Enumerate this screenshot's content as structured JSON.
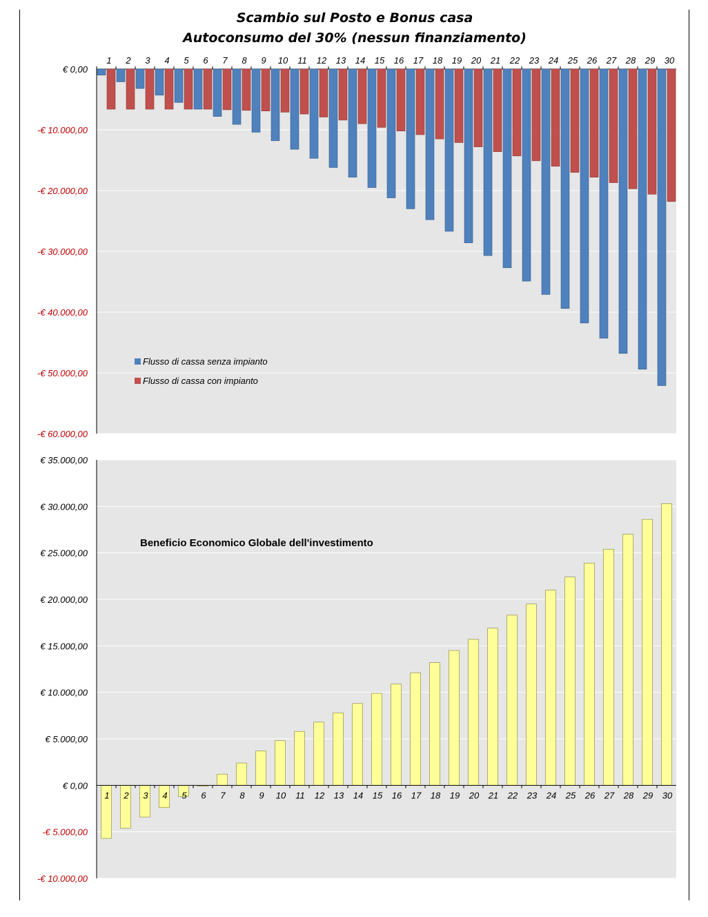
{
  "title_line1": "Scambio sul Posto e Bonus casa",
  "title_line2": "Autoconsumo del 30% (nessun finanziamento)",
  "colors": {
    "plot_bg": "#e6e6e6",
    "gridline": "#ffffff",
    "negative_tick": "#c00000",
    "series_senza": "#4f81bd",
    "series_senza_edge": "#385d8a",
    "series_con": "#c0504d",
    "series_con_edge": "#8c3836",
    "beneficio": "#ffff99",
    "beneficio_edge": "#7f7f40"
  },
  "chart_data": [
    {
      "type": "bar",
      "title": "",
      "xlabel": "",
      "ylabel": "",
      "ylim": [
        -60000,
        0
      ],
      "grid": true,
      "legend_position": "bottom-left",
      "x_axis_position": "top",
      "categories": [
        "1",
        "2",
        "3",
        "4",
        "5",
        "6",
        "7",
        "8",
        "9",
        "10",
        "11",
        "12",
        "13",
        "14",
        "15",
        "16",
        "17",
        "18",
        "19",
        "20",
        "21",
        "22",
        "23",
        "24",
        "25",
        "26",
        "27",
        "28",
        "29",
        "30"
      ],
      "y_ticks": [
        0,
        -10000,
        -20000,
        -30000,
        -40000,
        -50000,
        -60000
      ],
      "y_tick_labels": [
        "€ 0,00",
        "-€ 10.000,00",
        "-€ 20.000,00",
        "-€ 30.000,00",
        "-€ 40.000,00",
        "-€ 50.000,00",
        "-€ 60.000,00"
      ],
      "series": [
        {
          "name": "Flusso di cassa senza impianto",
          "values": [
            -1000,
            -2100,
            -3200,
            -4300,
            -5500,
            -6600,
            -7800,
            -9100,
            -10400,
            -11800,
            -13200,
            -14700,
            -16200,
            -17800,
            -19500,
            -21200,
            -23000,
            -24800,
            -26700,
            -28600,
            -30700,
            -32700,
            -34900,
            -37100,
            -39400,
            -41800,
            -44300,
            -46800,
            -49400,
            -52100
          ]
        },
        {
          "name": "Flusso di cassa con impianto",
          "values": [
            -6600,
            -6600,
            -6600,
            -6600,
            -6600,
            -6600,
            -6700,
            -6800,
            -6900,
            -7100,
            -7400,
            -7900,
            -8400,
            -9000,
            -9600,
            -10200,
            -10800,
            -11500,
            -12100,
            -12800,
            -13600,
            -14300,
            -15100,
            -16000,
            -17000,
            -17800,
            -18700,
            -19700,
            -20600,
            -21800
          ]
        }
      ]
    },
    {
      "type": "bar",
      "title": "Beneficio Economico Globale dell'investimento",
      "xlabel": "",
      "ylabel": "",
      "ylim": [
        -10000,
        35000
      ],
      "grid": true,
      "categories": [
        "1",
        "2",
        "3",
        "4",
        "5",
        "6",
        "7",
        "8",
        "9",
        "10",
        "11",
        "12",
        "13",
        "14",
        "15",
        "16",
        "17",
        "18",
        "19",
        "20",
        "21",
        "22",
        "23",
        "24",
        "25",
        "26",
        "27",
        "28",
        "29",
        "30"
      ],
      "y_ticks": [
        35000,
        30000,
        25000,
        20000,
        15000,
        10000,
        5000,
        0,
        -5000,
        -10000
      ],
      "y_tick_labels": [
        "€ 35.000,00",
        "€ 30.000,00",
        "€ 25.000,00",
        "€ 20.000,00",
        "€ 15.000,00",
        "€ 10.000,00",
        "€ 5.000,00",
        "€ 0,00",
        "-€ 5.000,00",
        "-€ 10.000,00"
      ],
      "series": [
        {
          "name": "",
          "values": [
            -5700,
            -4600,
            -3400,
            -2400,
            -1200,
            -100,
            1200,
            2400,
            3700,
            4800,
            5800,
            6800,
            7800,
            8800,
            9900,
            10900,
            12100,
            13200,
            14500,
            15700,
            16900,
            18300,
            19500,
            21000,
            22400,
            23900,
            25400,
            27000,
            28600,
            30300
          ]
        }
      ]
    }
  ]
}
